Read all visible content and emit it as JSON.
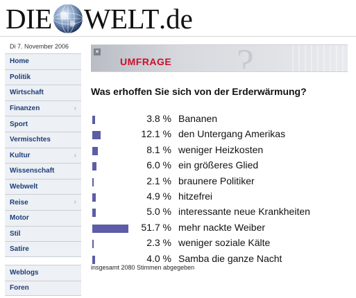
{
  "header": {
    "logo_left": "DIE",
    "logo_right": "WELT",
    "logo_suffix": ".de"
  },
  "date": "Di 7. November 2006",
  "sidebar": {
    "items": [
      {
        "label": "Home",
        "arrow": false
      },
      {
        "label": "Politik",
        "arrow": false
      },
      {
        "label": "Wirtschaft",
        "arrow": false
      },
      {
        "label": "Finanzen",
        "arrow": true
      },
      {
        "label": "Sport",
        "arrow": false
      },
      {
        "label": "Vermischtes",
        "arrow": false
      },
      {
        "label": "Kultur",
        "arrow": true
      },
      {
        "label": "Wissenschaft",
        "arrow": false
      },
      {
        "label": "Webwelt",
        "arrow": false
      },
      {
        "label": "Reise",
        "arrow": true
      },
      {
        "label": "Motor",
        "arrow": false
      },
      {
        "label": "Stil",
        "arrow": false
      },
      {
        "label": "Satire",
        "arrow": false
      }
    ],
    "secondary": [
      {
        "label": "Weblogs"
      },
      {
        "label": "Foren"
      }
    ],
    "arrow_glyph": "›"
  },
  "banner": {
    "title": "UMFRAGE",
    "close_glyph": "×"
  },
  "poll": {
    "question": "Was erhoffen Sie sich von der Erderwärmung?",
    "results": [
      {
        "percent_text": "3.8 %",
        "value": 3.8,
        "answer": "Bananen"
      },
      {
        "percent_text": "12.1 %",
        "value": 12.1,
        "answer": "den Untergang Amerikas"
      },
      {
        "percent_text": "8.1 %",
        "value": 8.1,
        "answer": "weniger Heizkosten"
      },
      {
        "percent_text": "6.0 %",
        "value": 6.0,
        "answer": "ein größeres Glied"
      },
      {
        "percent_text": "2.1 %",
        "value": 2.1,
        "answer": "braunere Politiker"
      },
      {
        "percent_text": "4.9 %",
        "value": 4.9,
        "answer": "hitzefrei"
      },
      {
        "percent_text": "5.0 %",
        "value": 5.0,
        "answer": "interessante neue Krankheiten"
      },
      {
        "percent_text": "51.7 %",
        "value": 51.7,
        "answer": "mehr nackte Weiber"
      },
      {
        "percent_text": "2.3 %",
        "value": 2.3,
        "answer": "weniger soziale Kälte"
      },
      {
        "percent_text": "4.0 %",
        "value": 4.0,
        "answer": "Samba die ganze Nacht"
      }
    ],
    "total": "insgesamt 2080 Stimmen abgegeben"
  },
  "colors": {
    "bar": "#5c5ca8",
    "nav_text": "#1d3e78",
    "banner_title": "#c8102e"
  },
  "icons": {
    "globe": "globe-icon",
    "close": "close-icon",
    "chevron": "chevron-right-icon"
  }
}
